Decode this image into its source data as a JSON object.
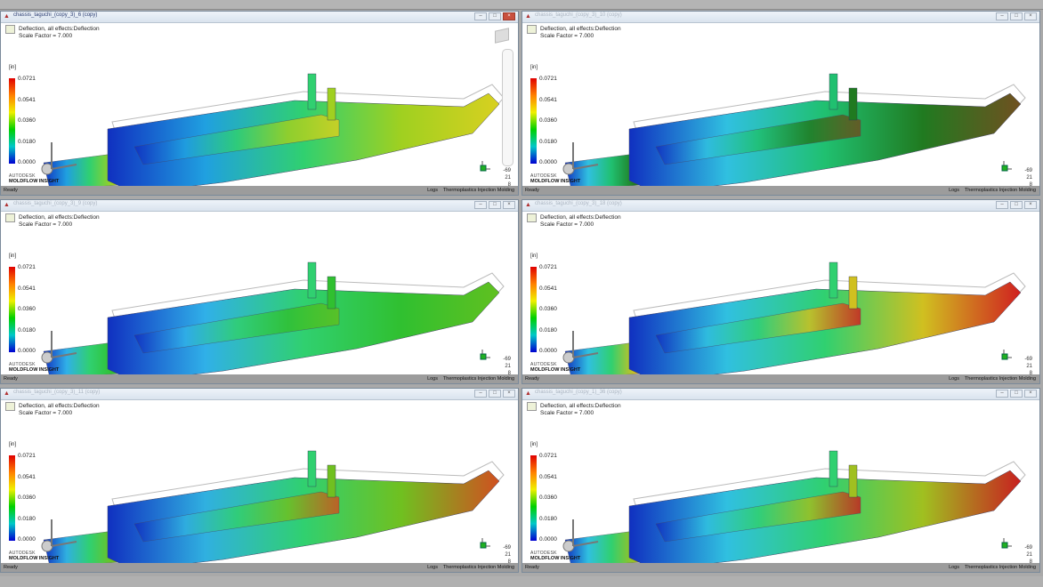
{
  "panes": [
    {
      "title": "chassis_taguchi_(copy_3)_6 (copy)",
      "active": true,
      "gradient": [
        "#1030c0",
        "#20a0e0",
        "#30d070",
        "#a0d020",
        "#d8d020"
      ]
    },
    {
      "title": "chassis_taguchi_(copy_3)_10 (copy)",
      "active": false,
      "gradient": [
        "#1030c0",
        "#30c0e0",
        "#20c070",
        "#207a20",
        "#705020"
      ]
    },
    {
      "title": "chassis_taguchi_(copy_3)_9 (copy)",
      "active": false,
      "gradient": [
        "#1030c0",
        "#30b0e8",
        "#30d070",
        "#30c030",
        "#60c020"
      ]
    },
    {
      "title": "chassis_taguchi_(copy_3)_18 (copy)",
      "active": false,
      "gradient": [
        "#1030c0",
        "#30c0e0",
        "#30d070",
        "#d0c020",
        "#d02020"
      ]
    },
    {
      "title": "chassis_taguchi_(copy_3)_11 (copy)",
      "active": false,
      "gradient": [
        "#1030c0",
        "#30b0e0",
        "#30d070",
        "#70c020",
        "#d05020"
      ]
    },
    {
      "title": "chassis_taguchi_(copy_1)_36 (copy)",
      "active": false,
      "gradient": [
        "#1030c0",
        "#30c0e0",
        "#30d070",
        "#a0c020",
        "#c82020"
      ]
    }
  ],
  "plot": {
    "result_name": "Deflection, all effects:Deflection",
    "scale_factor": "Scale Factor = 7.000",
    "unit": "[in]",
    "legend_values": [
      "0.0721",
      "0.0541",
      "0.0360",
      "0.0180",
      "0.0000"
    ],
    "logo_line1": "AUTODESK",
    "logo_line2": "MOLDFLOW INSIGHT",
    "coords": [
      "-69",
      "21",
      "8"
    ]
  },
  "status": {
    "ready": "Ready",
    "logs": "Logs",
    "mode": "Thermoplastics Injection Molding"
  },
  "window_buttons": {
    "minimize": "–",
    "maximize": "□",
    "close": "×"
  }
}
